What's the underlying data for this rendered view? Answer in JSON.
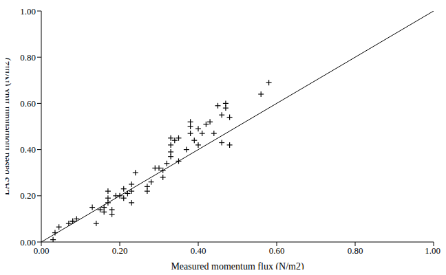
{
  "chart_data": {
    "type": "scatter",
    "x_label": "Measured momentum flux  (N/m2)",
    "y_label": "LAS based momentum flux (N/m2)",
    "xlim": [
      0,
      1
    ],
    "ylim": [
      0,
      1
    ],
    "xticks": [
      {
        "value": 0,
        "label": "0.00"
      },
      {
        "value": 0.2,
        "label": "0.20"
      },
      {
        "value": 0.4,
        "label": "0.40"
      },
      {
        "value": 0.6,
        "label": "0.60"
      },
      {
        "value": 0.8,
        "label": "0.80"
      },
      {
        "value": 1,
        "label": "1.00"
      }
    ],
    "yticks": [
      {
        "value": 0,
        "label": "0.00"
      },
      {
        "value": 0.2,
        "label": "0.20"
      },
      {
        "value": 0.4,
        "label": "0.40"
      },
      {
        "value": 0.6,
        "label": "0.60"
      },
      {
        "value": 0.8,
        "label": "0.80"
      },
      {
        "value": 1,
        "label": "1.00"
      }
    ],
    "grid": false,
    "series": [
      {
        "type": "scatter",
        "marker": "plus",
        "color": "#000000",
        "x": [
          0.03,
          0.035,
          0.045,
          0.07,
          0.08,
          0.09,
          0.08,
          0.13,
          0.14,
          0.15,
          0.16,
          0.16,
          0.17,
          0.17,
          0.17,
          0.18,
          0.18,
          0.19,
          0.2,
          0.21,
          0.21,
          0.22,
          0.23,
          0.23,
          0.24,
          0.23,
          0.27,
          0.27,
          0.28,
          0.29,
          0.3,
          0.31,
          0.31,
          0.32,
          0.33,
          0.33,
          0.33,
          0.33,
          0.34,
          0.35,
          0.35,
          0.37,
          0.38,
          0.38,
          0.38,
          0.39,
          0.4,
          0.4,
          0.41,
          0.42,
          0.43,
          0.44,
          0.45,
          0.46,
          0.46,
          0.47,
          0.47,
          0.48,
          0.48,
          0.56,
          0.58
        ],
        "values": [
          0.01,
          0.04,
          0.065,
          0.08,
          0.09,
          0.1,
          0.09,
          0.15,
          0.08,
          0.14,
          0.13,
          0.15,
          0.22,
          0.19,
          0.17,
          0.12,
          0.14,
          0.2,
          0.2,
          0.23,
          0.19,
          0.21,
          0.25,
          0.17,
          0.3,
          0.22,
          0.24,
          0.22,
          0.26,
          0.32,
          0.32,
          0.28,
          0.31,
          0.34,
          0.45,
          0.42,
          0.39,
          0.37,
          0.44,
          0.35,
          0.45,
          0.4,
          0.52,
          0.5,
          0.47,
          0.44,
          0.49,
          0.42,
          0.47,
          0.51,
          0.52,
          0.47,
          0.59,
          0.55,
          0.43,
          0.58,
          0.6,
          0.54,
          0.42,
          0.64,
          0.69
        ]
      },
      {
        "type": "line",
        "color": "#000000",
        "x": [
          0,
          1
        ],
        "values": [
          0,
          1
        ]
      }
    ]
  }
}
